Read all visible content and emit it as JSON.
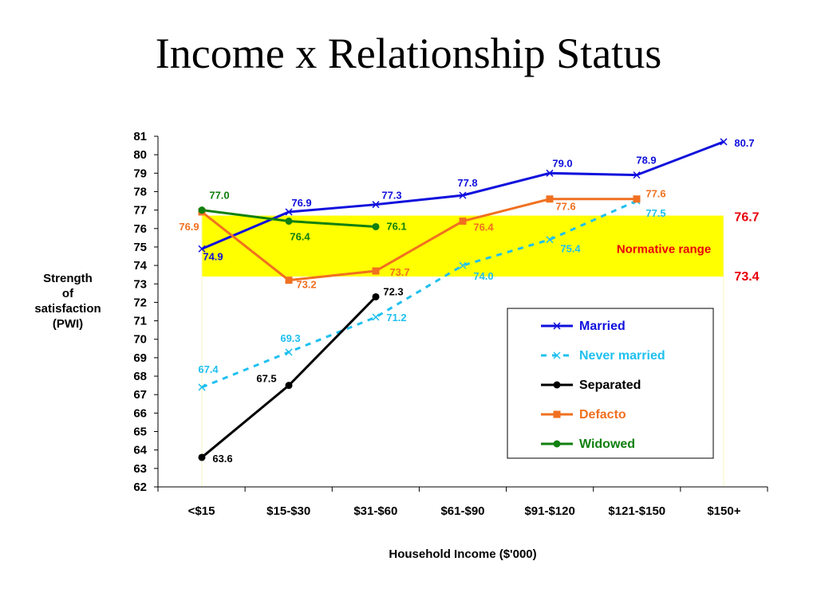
{
  "title": "Income x Relationship Status",
  "chart_data": {
    "type": "line",
    "title": "Income x Relationship Status",
    "xlabel": "Household Income ($'000)",
    "ylabel": "Strength of satisfaction (PWI)",
    "ylabel_lines": [
      "Strength",
      "of",
      "satisfaction",
      "(PWI)"
    ],
    "ylim": [
      62,
      81
    ],
    "yticks": [
      62,
      63,
      64,
      65,
      66,
      67,
      68,
      69,
      70,
      71,
      72,
      73,
      74,
      75,
      76,
      77,
      78,
      79,
      80,
      81
    ],
    "categories": [
      "<$15",
      "$15-$30",
      "$31-$60",
      "$61-$90",
      "$91-$120",
      "$121-$150",
      "$150+"
    ],
    "grid": false,
    "legend_position": "bottom-right inside plot",
    "normative_range": {
      "label": "Normative range",
      "low": 73.4,
      "high": 76.7,
      "low_label": "73.4",
      "high_label": "76.7",
      "color": "#ffff00",
      "label_color": "#e8000b"
    },
    "series": [
      {
        "name": "Married",
        "color": "#1010dd",
        "marker": "x",
        "dashed": false,
        "values": [
          74.9,
          76.9,
          77.3,
          77.8,
          79.0,
          78.9,
          80.7
        ],
        "labels": [
          "74.9",
          "76.9",
          "77.3",
          "77.8",
          "79.0",
          "78.9",
          "80.7"
        ]
      },
      {
        "name": "Never married",
        "color": "#20c0ef",
        "marker": "x",
        "dashed": true,
        "values": [
          67.4,
          69.3,
          71.2,
          74.0,
          75.4,
          77.5,
          null
        ],
        "labels": [
          "67.4",
          "69.3",
          "71.2",
          "74.0",
          "75.4",
          "77.5",
          null
        ]
      },
      {
        "name": "Separated",
        "color": "#000000",
        "marker": "circle",
        "dashed": false,
        "values": [
          63.6,
          67.5,
          72.3,
          null,
          null,
          null,
          null
        ],
        "labels": [
          "63.6",
          "67.5",
          "72.3",
          null,
          null,
          null,
          null
        ]
      },
      {
        "name": "Defacto",
        "color": "#f07020",
        "marker": "square",
        "dashed": false,
        "values": [
          76.9,
          73.2,
          73.7,
          76.4,
          77.6,
          77.6,
          null
        ],
        "labels": [
          "76.9",
          "73.2",
          "73.7",
          "76.4",
          "77.6",
          "77.6",
          null
        ]
      },
      {
        "name": "Widowed",
        "color": "#108010",
        "marker": "circle",
        "dashed": false,
        "values": [
          77.0,
          76.4,
          76.1,
          null,
          null,
          null,
          null
        ],
        "labels": [
          "77.0",
          "76.4",
          "76.1",
          null,
          null,
          null,
          null
        ]
      }
    ]
  }
}
